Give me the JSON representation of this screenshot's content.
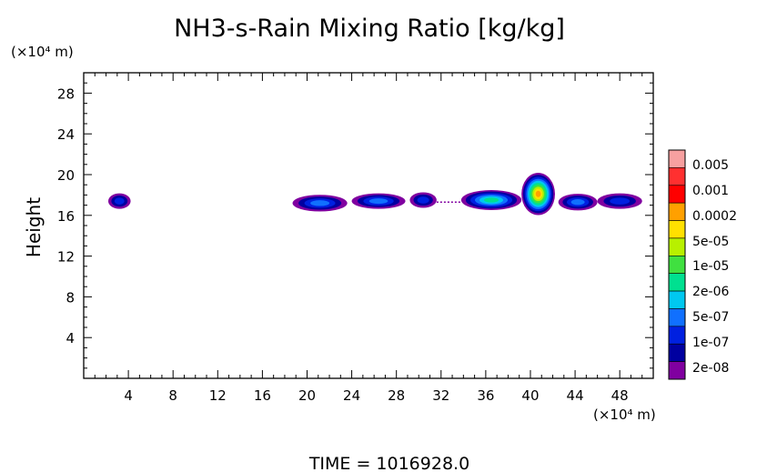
{
  "chart_data": {
    "type": "heatmap",
    "title": "NH3-s-Rain Mixing Ratio [kg/kg]",
    "xlabel": "",
    "ylabel": "Height",
    "x_unit": "(×10⁴ m)",
    "y_unit": "(×10⁴ m)",
    "xlim": [
      0,
      51
    ],
    "ylim": [
      0,
      30
    ],
    "x_ticks": [
      4,
      8,
      12,
      16,
      20,
      24,
      28,
      32,
      36,
      40,
      44,
      48
    ],
    "y_ticks": [
      4,
      8,
      12,
      16,
      20,
      24,
      28
    ],
    "time_label": "TIME  =  1016928.0",
    "colorbar": {
      "labels": [
        "0.005",
        "0.001",
        "0.0002",
        "5e-05",
        "1e-05",
        "2e-06",
        "5e-07",
        "1e-07",
        "2e-08"
      ],
      "colors": [
        "#ff0000",
        "#ff2a2a",
        "#ffff00",
        "#7fff00",
        "#00ff00",
        "#00e0a0",
        "#00b0ff",
        "#0060ff",
        "#0000c0",
        "#8000a0"
      ],
      "colors_top_to_bottom": [
        "#f7a0a0",
        "#ff3030",
        "#ff0000",
        "#ffa000",
        "#ffe000",
        "#b8f000",
        "#40e040",
        "#00e090",
        "#00c8f0",
        "#1070ff",
        "#0020e0",
        "#0000a0",
        "#8000a0"
      ]
    },
    "clouds": [
      {
        "x0": 2.2,
        "x1": 4.2,
        "y": 17.4,
        "h": 0.9,
        "peak": 3
      },
      {
        "x0": 18.7,
        "x1": 23.6,
        "y": 17.2,
        "h": 1.0,
        "peak": 4
      },
      {
        "x0": 24.0,
        "x1": 28.8,
        "y": 17.4,
        "h": 0.9,
        "peak": 4
      },
      {
        "x0": 29.2,
        "x1": 31.6,
        "y": 17.5,
        "h": 0.9,
        "peak": 3
      },
      {
        "x0": 33.8,
        "x1": 39.2,
        "y": 17.5,
        "h": 1.3,
        "peak": 6
      },
      {
        "x0": 42.5,
        "x1": 46.0,
        "y": 17.3,
        "h": 1.0,
        "peak": 4
      },
      {
        "x0": 46.0,
        "x1": 50.0,
        "y": 17.4,
        "h": 0.9,
        "peak": 3
      }
    ],
    "tower": {
      "x0": 39.2,
      "x1": 42.2,
      "y0": 16.2,
      "y1": 20.0,
      "peak": 10
    }
  }
}
